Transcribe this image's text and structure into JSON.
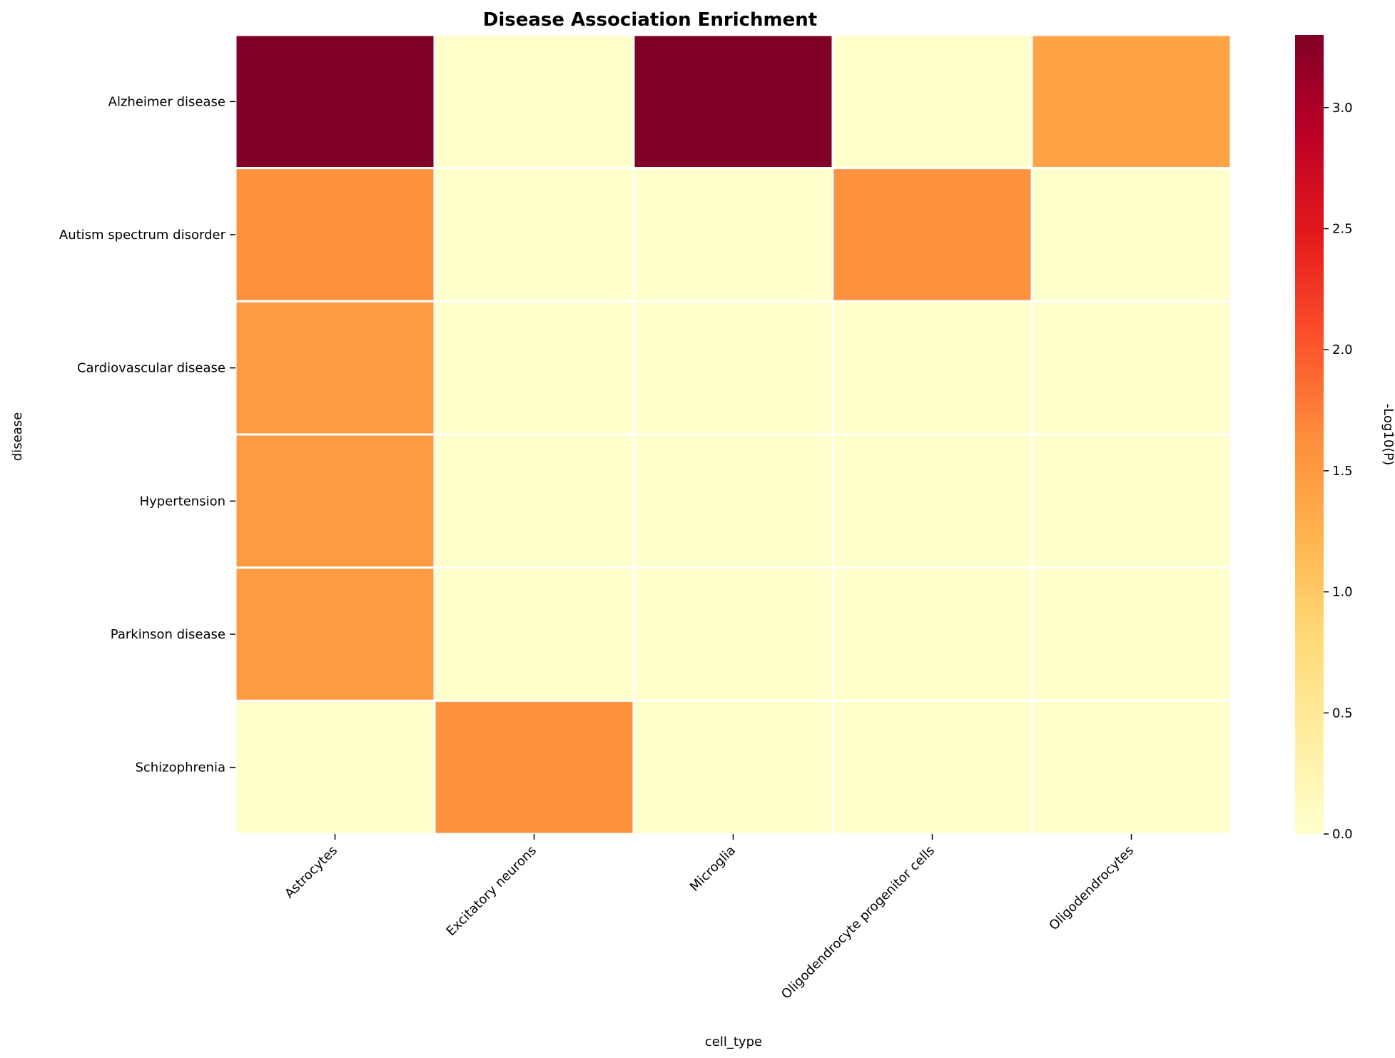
{
  "chart_data": {
    "type": "heatmap",
    "title": "Disease Association Enrichment",
    "xlabel": "cell_type",
    "ylabel": "disease",
    "x_categories": [
      "Astrocytes",
      "Excitatory neurons",
      "Microglia",
      "Oligodendrocyte progenitor cells",
      "Oligodendrocytes"
    ],
    "y_categories": [
      "Alzheimer disease",
      "Autism spectrum disorder",
      "Cardiovascular disease",
      "Hypertension",
      "Parkinson disease",
      "Schizophrenia"
    ],
    "values": [
      [
        3.3,
        0.0,
        3.3,
        0.0,
        1.4
      ],
      [
        1.6,
        0.0,
        0.0,
        1.6,
        0.0
      ],
      [
        1.5,
        0.0,
        0.0,
        0.0,
        0.0
      ],
      [
        1.5,
        0.0,
        0.0,
        0.0,
        0.0
      ],
      [
        1.5,
        0.0,
        0.0,
        0.0,
        0.0
      ],
      [
        0.0,
        1.6,
        0.0,
        0.0,
        0.0
      ]
    ],
    "colorbar": {
      "label": "-Log10(P)",
      "range": [
        0,
        3.3
      ],
      "ticks": [
        0.0,
        0.5,
        1.0,
        1.5,
        2.0,
        2.5,
        3.0
      ],
      "colormap": "YlOrRd",
      "colormap_stops": [
        "#ffffcc",
        "#ffeda0",
        "#fed976",
        "#feb24c",
        "#fd8d3c",
        "#fc4e2a",
        "#e31a1c",
        "#bd0026",
        "#800026"
      ]
    },
    "cell_separator_color": "#ffffff",
    "grid": false
  }
}
